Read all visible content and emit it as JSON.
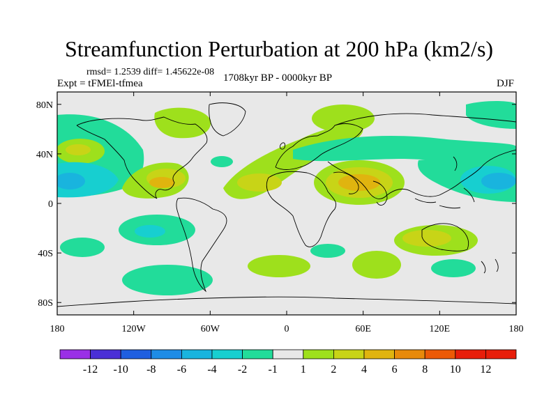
{
  "title": "Streamfunction Perturbation at 200 hPa (km2/s)",
  "stats": "rmsd= 1.2539  diff= 1.45622e-08",
  "experiment": "Expt = tFMEl-tfmea",
  "period": "1708kyr BP - 0000kyr BP",
  "season": "DJF",
  "map": {
    "lat_ticks": [
      "80N",
      "40N",
      "0",
      "40S",
      "80S"
    ],
    "lon_ticks": [
      "180",
      "120W",
      "60W",
      "0",
      "60E",
      "120E",
      "180"
    ]
  },
  "colorbar": {
    "labels": [
      "-12",
      "-10",
      "-8",
      "-6",
      "-4",
      "-2",
      "-1",
      "1",
      "2",
      "4",
      "6",
      "8",
      "10",
      "12"
    ],
    "colors": [
      "#8a2be2",
      "#4a2fd6",
      "#1f5fe0",
      "#1e8ce6",
      "#19b4de",
      "#17cfd0",
      "#22dc9a",
      "#e8e8e8",
      "#9ee01c",
      "#c8d417",
      "#e0b40f",
      "#e88a0a",
      "#ec5a06",
      "#e81e0a"
    ]
  }
}
